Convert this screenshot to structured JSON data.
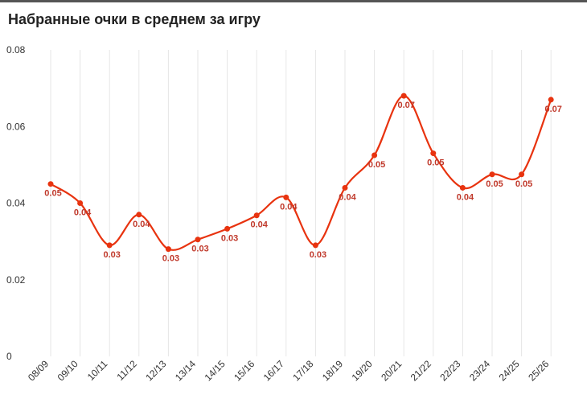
{
  "title": "Набранные очки в среднем за игру",
  "colors": {
    "line": "#e8330f",
    "point": "#e8330f",
    "label": "#c0392b",
    "grid": "#e6e6e6"
  },
  "chart_data": {
    "type": "line",
    "title": "Набранные очки в среднем за игру",
    "xlabel": "",
    "ylabel": "",
    "ylim": [
      0,
      0.08
    ],
    "yticks": [
      "0",
      "0.02",
      "0.04",
      "0.06",
      "0.08"
    ],
    "grid": "vertical",
    "categories": [
      "08/09",
      "09/10",
      "10/11",
      "11/12",
      "12/13",
      "13/14",
      "14/15",
      "15/16",
      "16/17",
      "17/18",
      "18/19",
      "19/20",
      "20/21",
      "21/22",
      "22/23",
      "23/24",
      "24/25",
      "25/26"
    ],
    "values": [
      0.045,
      0.04,
      0.029,
      0.037,
      0.028,
      0.0305,
      0.0333,
      0.0368,
      0.0415,
      0.029,
      0.044,
      0.0525,
      0.068,
      0.053,
      0.044,
      0.0475,
      0.0475,
      0.067
    ],
    "labels": [
      "0.05",
      "0.04",
      "0.03",
      "0.04",
      "0.03",
      "0.03",
      "0.03",
      "0.04",
      "0.04",
      "0.03",
      "0.04",
      "0.05",
      "0.07",
      "0.05",
      "0.04",
      "0.05",
      "0.05",
      "0.07"
    ]
  }
}
